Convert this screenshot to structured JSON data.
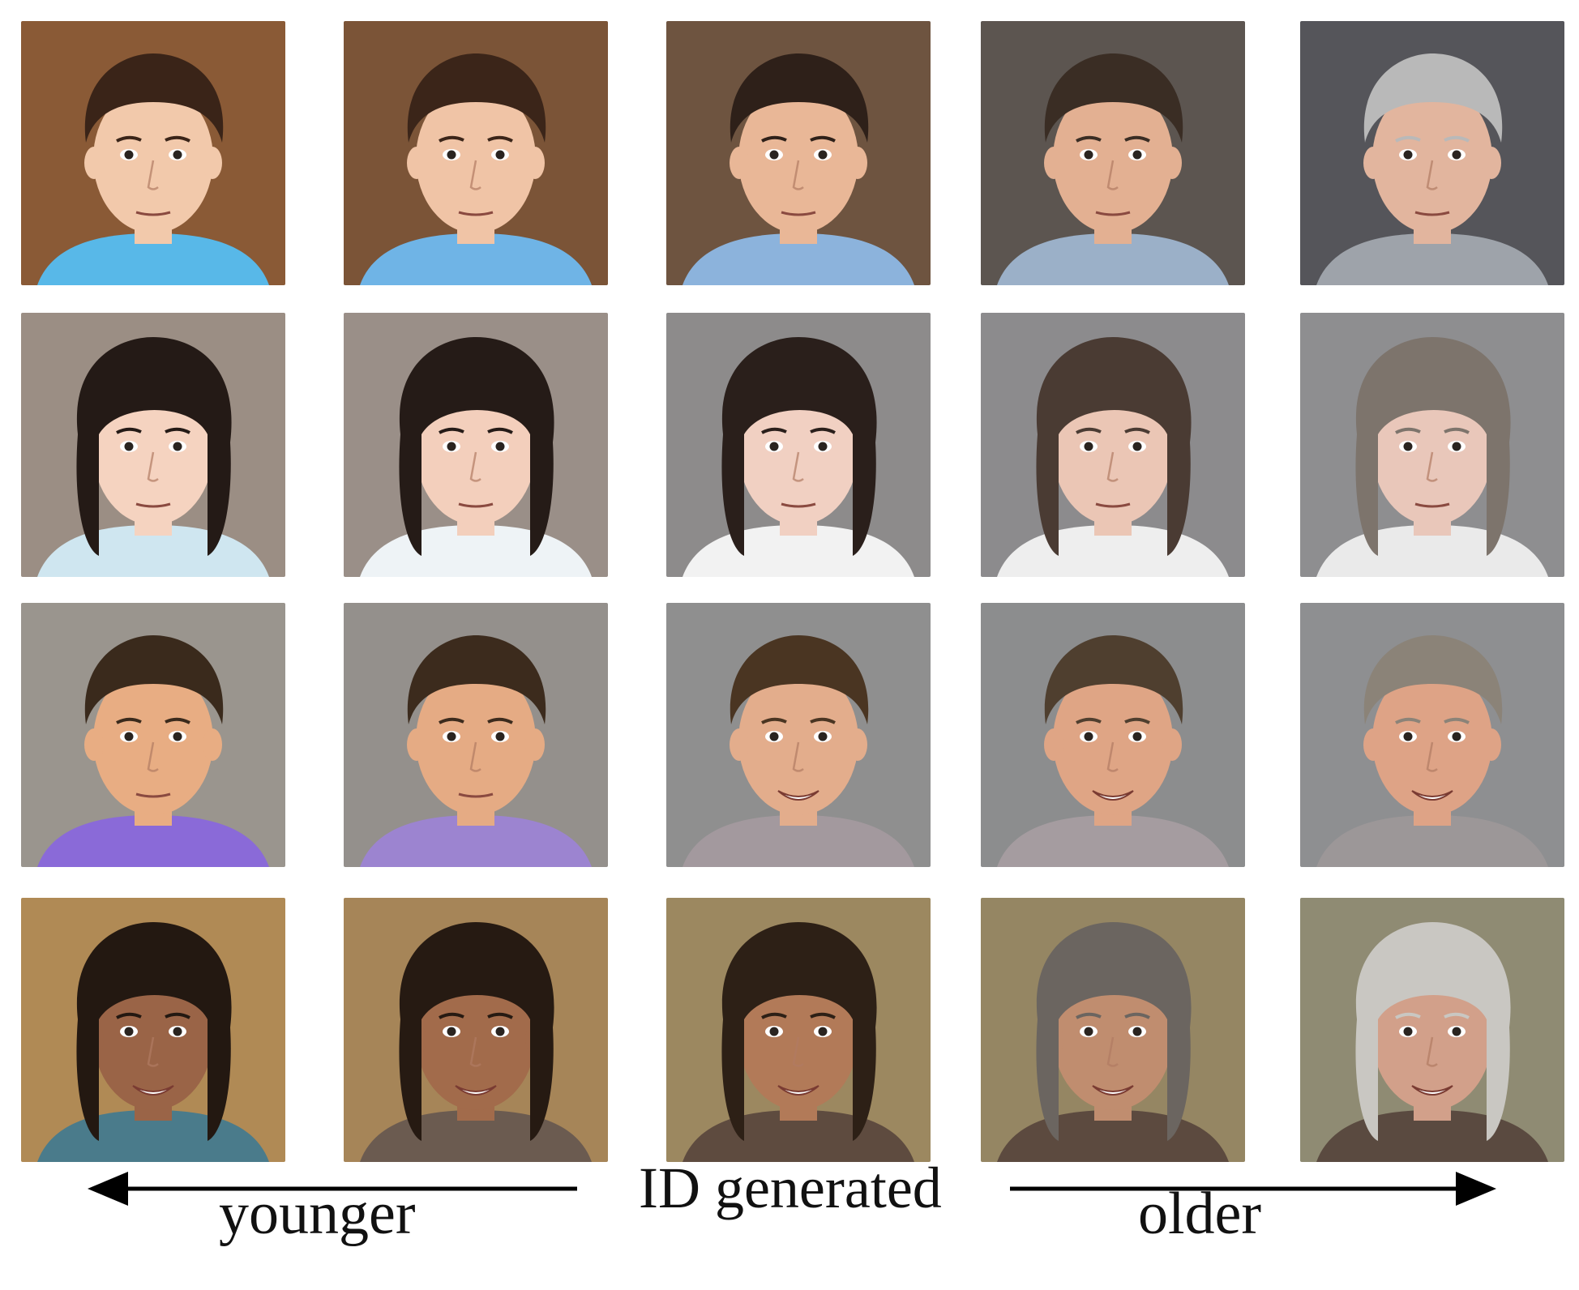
{
  "labels": {
    "younger": "younger",
    "id_generated": "ID generated",
    "older": "older"
  },
  "rows": [
    {
      "subject": "boy with curly brown hair",
      "faces": [
        {
          "age_stage": "toddler",
          "bg": "#8a5a36",
          "skin": "#f2c9ab",
          "hair": "#3a2418",
          "shirt": "#58b8e8"
        },
        {
          "age_stage": "child",
          "bg": "#7b5437",
          "skin": "#f0c4a6",
          "hair": "#3b2519",
          "shirt": "#6fb4e6"
        },
        {
          "age_stage": "young-adult",
          "bg": "#6e5440",
          "skin": "#e9b797",
          "hair": "#2e2019",
          "shirt": "#8cb3dc"
        },
        {
          "age_stage": "middle-aged",
          "bg": "#5c5550",
          "skin": "#e3b092",
          "hair": "#3a2d24",
          "shirt": "#9bb0c8"
        },
        {
          "age_stage": "elderly",
          "bg": "#55555a",
          "skin": "#e2b59e",
          "hair": "#b9b9b9",
          "shirt": "#9ea3aa"
        }
      ]
    },
    {
      "subject": "girl with dark hair",
      "faces": [
        {
          "age_stage": "toddler",
          "bg": "#9b8e84",
          "skin": "#f5d3c0",
          "hair": "#241a16",
          "shirt": "#cfe6f0"
        },
        {
          "age_stage": "child",
          "bg": "#9a8f88",
          "skin": "#f3cfbc",
          "hair": "#251b17",
          "shirt": "#eef3f6"
        },
        {
          "age_stage": "young-adult",
          "bg": "#8d8b8b",
          "skin": "#f1d0c2",
          "hair": "#2a1f1b",
          "shirt": "#f2f2f2"
        },
        {
          "age_stage": "middle-aged",
          "bg": "#8c8b8d",
          "skin": "#ebc6b5",
          "hair": "#4a3b33",
          "shirt": "#eeeeee"
        },
        {
          "age_stage": "elderly",
          "bg": "#8e8e90",
          "skin": "#e9c7ba",
          "hair": "#7d746c",
          "shirt": "#eaeaea"
        }
      ]
    },
    {
      "subject": "boy with brown hair",
      "faces": [
        {
          "age_stage": "toddler",
          "bg": "#9a958e",
          "skin": "#e8ad83",
          "hair": "#3a2a1c",
          "shirt": "#8a6ad8"
        },
        {
          "age_stage": "child",
          "bg": "#94908c",
          "skin": "#e5ab84",
          "hair": "#3c2b1d",
          "shirt": "#9c84d0"
        },
        {
          "age_stage": "young-adult",
          "bg": "#8f8f8f",
          "skin": "#e3ad8c",
          "hair": "#4a3522",
          "shirt": "#a3999e"
        },
        {
          "age_stage": "middle-aged",
          "bg": "#8c8d8e",
          "skin": "#dfa585",
          "hair": "#4f3f2f",
          "shirt": "#a59ca0"
        },
        {
          "age_stage": "elderly",
          "bg": "#8e8f91",
          "skin": "#dea386",
          "hair": "#8b8378",
          "shirt": "#9c9798"
        }
      ]
    },
    {
      "subject": "girl with curly dark hair",
      "faces": [
        {
          "age_stage": "child",
          "bg": "#b08a55",
          "skin": "#9a6447",
          "hair": "#231811",
          "shirt": "#4a7b8b"
        },
        {
          "age_stage": "teen",
          "bg": "#a68558",
          "skin": "#a26b4b",
          "hair": "#261a12",
          "shirt": "#6b5b50"
        },
        {
          "age_stage": "young-adult",
          "bg": "#9c8860",
          "skin": "#b27a58",
          "hair": "#2d2016",
          "shirt": "#5e4b3f"
        },
        {
          "age_stage": "middle-aged",
          "bg": "#958663",
          "skin": "#c08d6f",
          "hair": "#6b6560",
          "shirt": "#5c4a3f"
        },
        {
          "age_stage": "elderly",
          "bg": "#8f8b73",
          "skin": "#d2a08a",
          "hair": "#c9c7c2",
          "shirt": "#5a4a40"
        }
      ]
    }
  ]
}
